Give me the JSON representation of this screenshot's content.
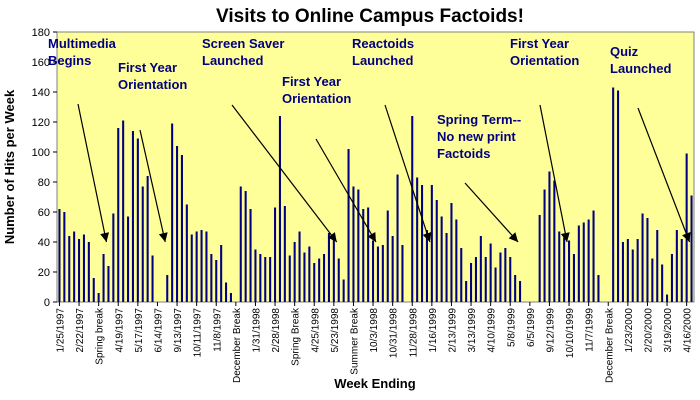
{
  "chart_data": {
    "type": "bar",
    "title": "Visits to Online Campus Factoids!",
    "xlabel": "Week Ending",
    "ylabel": "Number of Hits per Week",
    "ylim": [
      0,
      180
    ],
    "yticks": [
      0,
      20,
      40,
      60,
      80,
      100,
      120,
      140,
      160,
      180
    ],
    "grid": false,
    "bar_color": "#000080",
    "plot_background": "#ffff99",
    "x_tick_labels": [
      "1/25/1997",
      "2/22/1997",
      "Spring break",
      "4/19/1997",
      "5/17/1997",
      "6/14/1997",
      "9/13/1997",
      "10/11/1997",
      "11/8/1997",
      "December Break",
      "1/31/1998",
      "2/28/1998",
      "Spring Break",
      "4/25/1998",
      "5/23/1998",
      "Summer Break",
      "10/3/1998",
      "10/31/1998",
      "11/28/1998",
      "1/16/1999",
      "2/13/1999",
      "3/13/1999",
      "4/10/1999",
      "5/8/1999",
      "6/5/1999",
      "9/12/1999",
      "10/10/1999",
      "11/7/1999",
      "December Break",
      "1/23/2000",
      "2/20/2000",
      "3/19/2000",
      "4/16/2000"
    ],
    "values": [
      62,
      60,
      44,
      47,
      42,
      45,
      40,
      16,
      6,
      32,
      24,
      59,
      116,
      121,
      57,
      114,
      109,
      77,
      84,
      31,
      0,
      0,
      18,
      119,
      104,
      98,
      65,
      45,
      47,
      48,
      47,
      32,
      28,
      38,
      13,
      6,
      0,
      77,
      74,
      62,
      35,
      32,
      30,
      30,
      63,
      124,
      64,
      31,
      40,
      47,
      33,
      37,
      26,
      29,
      32,
      46,
      43,
      29,
      15,
      102,
      77,
      75,
      62,
      63,
      41,
      37,
      38,
      61,
      44,
      85,
      38,
      0,
      124,
      83,
      78,
      48,
      78,
      68,
      57,
      46,
      66,
      55,
      36,
      14,
      26,
      30,
      44,
      30,
      39,
      23,
      33,
      36,
      30,
      18,
      14,
      0,
      0,
      0,
      58,
      75,
      87,
      81,
      47,
      43,
      41,
      32,
      51,
      53,
      55,
      61,
      18,
      0,
      0,
      143,
      141,
      40,
      42,
      35,
      42,
      59,
      56,
      29,
      48,
      25,
      5,
      32,
      48,
      42,
      99,
      71
    ],
    "annotations": [
      {
        "lines": [
          "Multimedia",
          "Begins"
        ]
      },
      {
        "lines": [
          "First Year",
          "Orientation"
        ]
      },
      {
        "lines": [
          "Screen Saver",
          "Launched"
        ]
      },
      {
        "lines": [
          "First Year",
          "Orientation"
        ]
      },
      {
        "lines": [
          "Reactoids",
          "Launched"
        ]
      },
      {
        "lines": [
          "Spring Term--",
          "No new print",
          "Factoids"
        ]
      },
      {
        "lines": [
          "First Year",
          "Orientation"
        ]
      },
      {
        "lines": [
          "Quiz",
          "Launched"
        ]
      }
    ]
  }
}
